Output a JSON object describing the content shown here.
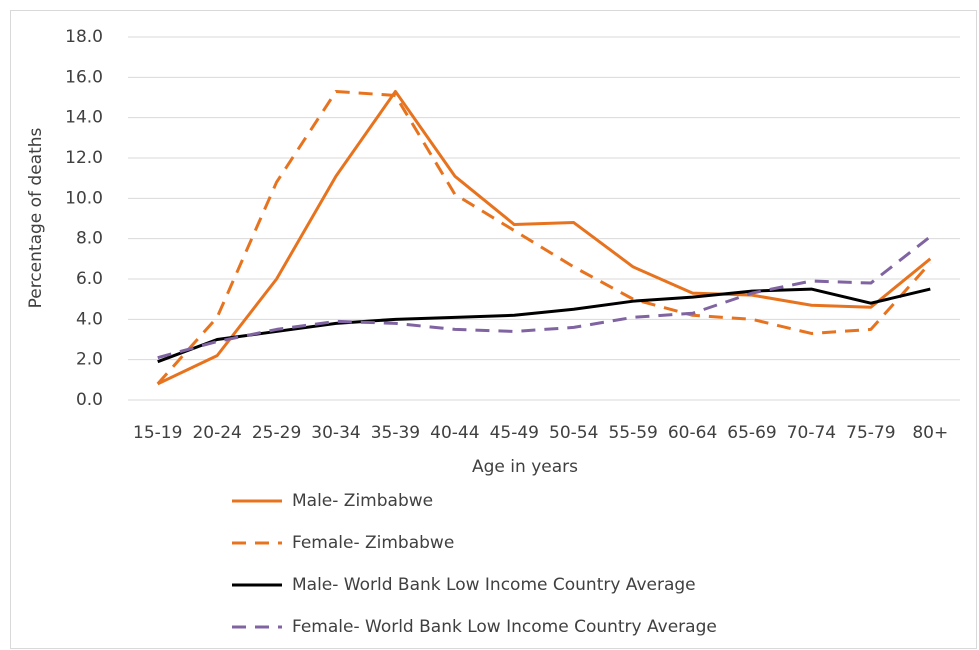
{
  "chart_data": {
    "type": "line",
    "x_label": "Age in years",
    "y_label": "Percentage of deaths",
    "categories": [
      "15-19",
      "20-24",
      "25-29",
      "30-34",
      "35-39",
      "40-44",
      "45-49",
      "50-54",
      "55-59",
      "60-64",
      "65-69",
      "70-74",
      "75-79",
      "80+"
    ],
    "series": [
      {
        "name": "Male- Zimbabwe",
        "color": "#e8731e",
        "dashed": false,
        "values": [
          0.8,
          2.2,
          6.0,
          11.1,
          15.3,
          11.1,
          8.7,
          8.8,
          6.6,
          5.3,
          5.2,
          4.7,
          4.6,
          7.0
        ]
      },
      {
        "name": "Female- Zimbabwe",
        "color": "#e8731e",
        "dashed": true,
        "values": [
          0.8,
          4.1,
          10.8,
          15.3,
          15.1,
          10.2,
          8.4,
          6.6,
          5.0,
          4.2,
          4.0,
          3.3,
          3.5,
          6.8
        ]
      },
      {
        "name": "Male- World Bank Low Income Country Average",
        "color": "#000000",
        "dashed": false,
        "values": [
          1.9,
          3.0,
          3.4,
          3.8,
          4.0,
          4.1,
          4.2,
          4.5,
          4.9,
          5.1,
          5.4,
          5.5,
          4.8,
          5.5
        ]
      },
      {
        "name": "Female- World Bank Low Income Country Average",
        "color": "#8064a2",
        "dashed": true,
        "values": [
          2.1,
          2.9,
          3.5,
          3.9,
          3.8,
          3.5,
          3.4,
          3.6,
          4.1,
          4.3,
          5.3,
          5.9,
          5.8,
          8.1
        ]
      }
    ],
    "ylim": [
      0,
      18
    ],
    "yticks": [
      {
        "value": 0,
        "label": "0.0"
      },
      {
        "value": 2,
        "label": "2.0"
      },
      {
        "value": 4,
        "label": "4.0"
      },
      {
        "value": 6,
        "label": "6.0"
      },
      {
        "value": 8,
        "label": "8.0"
      },
      {
        "value": 10,
        "label": "10.0"
      },
      {
        "value": 12,
        "label": "12.0"
      },
      {
        "value": 14,
        "label": "14.0"
      },
      {
        "value": 16,
        "label": "16.0"
      },
      {
        "value": 18,
        "label": "18.0"
      }
    ],
    "grid": true,
    "legend": "bottom"
  }
}
